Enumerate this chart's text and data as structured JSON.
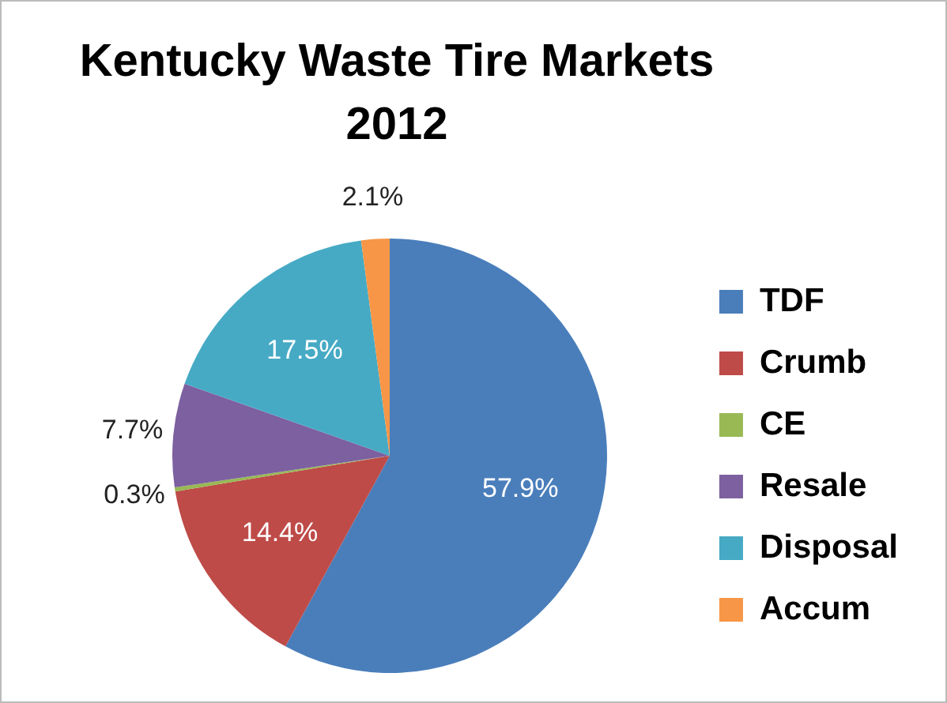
{
  "chart_data": {
    "type": "pie",
    "title": "Kentucky Waste Tire Markets 2012",
    "categories": [
      "TDF",
      "Crumb",
      "CE",
      "Resale",
      "Disposal",
      "Accum"
    ],
    "values": [
      57.9,
      14.4,
      0.3,
      7.7,
      17.5,
      2.1
    ],
    "colors": [
      "#4a7ebb",
      "#be4b48",
      "#98b954",
      "#7d60a0",
      "#46aac5",
      "#f79646"
    ],
    "value_labels": [
      "57.9%",
      "14.4%",
      "0.3%",
      "7.7%",
      "17.5%",
      "2.1%"
    ],
    "legend": "right"
  }
}
